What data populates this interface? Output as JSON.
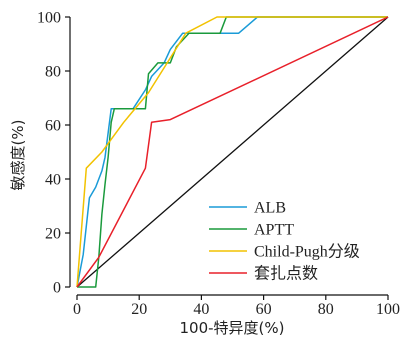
{
  "chart_data": {
    "type": "line",
    "xlabel": "100-特异度(%)",
    "ylabel": "敏感度(%)",
    "xlim": [
      0,
      100
    ],
    "ylim": [
      0,
      100
    ],
    "xticks": [
      "0",
      "20",
      "40",
      "60",
      "80",
      "100"
    ],
    "yticks": [
      "0",
      "20",
      "40",
      "60",
      "80",
      "100"
    ],
    "grid": false,
    "legend": "lower-right",
    "series": [
      {
        "name": "ALB",
        "color": "#1a9bd7",
        "points": [
          [
            0,
            0
          ],
          [
            2,
            12
          ],
          [
            4,
            33
          ],
          [
            6,
            37
          ],
          [
            8,
            43
          ],
          [
            9,
            48
          ],
          [
            10,
            57
          ],
          [
            11,
            66
          ],
          [
            15,
            66
          ],
          [
            18,
            66
          ],
          [
            22,
            73
          ],
          [
            24,
            78
          ],
          [
            28,
            83
          ],
          [
            30,
            88
          ],
          [
            34,
            94
          ],
          [
            52,
            94
          ],
          [
            58,
            100
          ],
          [
            100,
            100
          ]
        ]
      },
      {
        "name": "APTT",
        "color": "#1a9a3c",
        "points": [
          [
            0,
            0
          ],
          [
            6,
            0
          ],
          [
            7,
            11
          ],
          [
            8,
            27
          ],
          [
            9,
            38
          ],
          [
            10,
            48
          ],
          [
            11,
            61
          ],
          [
            12,
            66
          ],
          [
            16,
            66
          ],
          [
            22,
            66
          ],
          [
            23,
            79
          ],
          [
            26,
            83
          ],
          [
            30,
            83
          ],
          [
            32,
            89
          ],
          [
            36,
            94
          ],
          [
            46,
            94
          ],
          [
            48,
            100
          ],
          [
            100,
            100
          ]
        ]
      },
      {
        "name": "Child-Pugh分级",
        "color": "#f2c200",
        "points": [
          [
            0,
            0
          ],
          [
            3,
            44
          ],
          [
            8,
            50
          ],
          [
            15,
            61
          ],
          [
            23,
            72
          ],
          [
            29,
            83
          ],
          [
            35,
            94
          ],
          [
            45,
            100
          ],
          [
            100,
            100
          ]
        ]
      },
      {
        "name": "套扎点数",
        "color": "#e8202a",
        "points": [
          [
            0,
            0
          ],
          [
            7,
            11
          ],
          [
            22,
            44
          ],
          [
            24,
            61
          ],
          [
            30,
            62
          ],
          [
            100,
            100
          ]
        ]
      },
      {
        "name": "",
        "color": "#111111",
        "points": [
          [
            0,
            0
          ],
          [
            100,
            100
          ]
        ]
      }
    ]
  }
}
